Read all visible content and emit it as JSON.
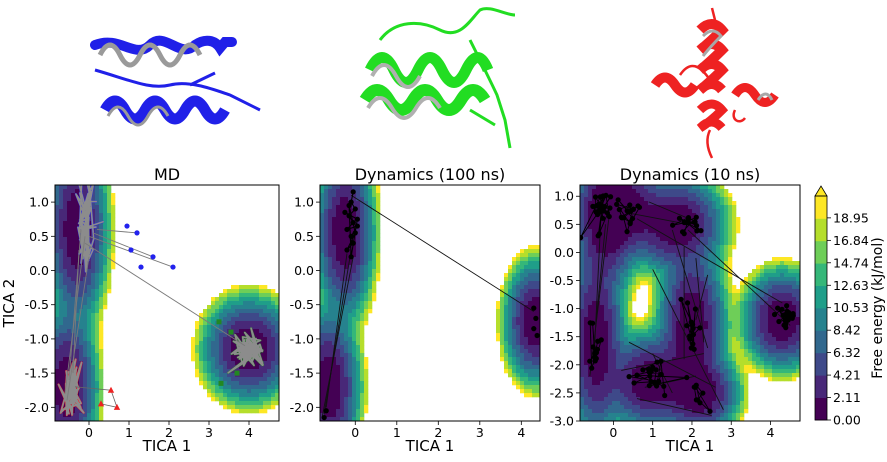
{
  "figure": {
    "colorbar": {
      "label": "Free energy (kJ/mol)",
      "ticks": [
        "0.00",
        "2.11",
        "4.21",
        "6.32",
        "8.42",
        "10.53",
        "12.63",
        "14.74",
        "16.84",
        "18.95"
      ],
      "range": [
        0,
        21.0
      ],
      "extend": "max",
      "colormap": [
        "#440154",
        "#482878",
        "#3e4989",
        "#31688e",
        "#26828e",
        "#1f9e89",
        "#35b779",
        "#6ece58",
        "#b5de2b",
        "#fde725"
      ]
    },
    "structures": [
      {
        "name": "protein-blue",
        "color": "#2020e8"
      },
      {
        "name": "protein-green",
        "color": "#22dd22"
      },
      {
        "name": "protein-red",
        "color": "#ee2222"
      }
    ]
  },
  "chart_data": [
    {
      "type": "contour+scatter",
      "title": "MD",
      "xlabel": "TICA 1",
      "ylabel": "TICA 2",
      "xlim": [
        -0.85,
        4.75
      ],
      "ylim": [
        -2.2,
        1.25
      ],
      "xticks": [
        "0",
        "1",
        "2",
        "3",
        "4"
      ],
      "yticks": [
        "1.0",
        "0.5",
        "0.0",
        "-0.5",
        "-1.0",
        "-1.5",
        "-2.0"
      ],
      "basins": [
        {
          "x": -0.3,
          "y": 0.6,
          "sx": 0.3,
          "sy": 0.55
        },
        {
          "x": -0.55,
          "y": -1.7,
          "sx": 0.3,
          "sy": 0.45
        },
        {
          "x": 4.0,
          "y": -1.15,
          "sx": 0.45,
          "sy": 0.3
        }
      ],
      "trajectories": [
        {
          "color": "#2222ee",
          "marker": "circle",
          "region": {
            "cx": -0.1,
            "cy": 0.6,
            "rx": 0.22,
            "ry": 0.55
          }
        },
        {
          "color": "#ee2222",
          "marker": "triangle",
          "region": {
            "cx": -0.45,
            "cy": -1.75,
            "rx": 0.25,
            "ry": 0.4
          }
        },
        {
          "color": "#228822",
          "marker": "square",
          "region": {
            "cx": 4.0,
            "cy": -1.15,
            "rx": 0.35,
            "ry": 0.18
          }
        }
      ],
      "outliers": [
        {
          "color": "#2222ee",
          "marker": "circle",
          "points": [
            [
              1.2,
              0.55
            ],
            [
              1.6,
              0.2
            ],
            [
              2.1,
              0.05
            ],
            [
              1.05,
              0.3
            ],
            [
              1.3,
              0.05
            ],
            [
              0.95,
              0.65
            ]
          ]
        },
        {
          "color": "#ee2222",
          "marker": "triangle",
          "points": [
            [
              0.55,
              -1.75
            ],
            [
              0.3,
              -1.95
            ],
            [
              0.7,
              -2.0
            ]
          ]
        },
        {
          "color": "#228822",
          "marker": "square",
          "points": [
            [
              3.25,
              -0.75
            ],
            [
              3.55,
              -0.9
            ],
            [
              3.3,
              -1.65
            ],
            [
              3.7,
              -1.5
            ]
          ]
        }
      ]
    },
    {
      "type": "contour+scatter",
      "title": "Dynamics (100 ns)",
      "xlabel": "TICA 1",
      "ylabel": "",
      "xlim": [
        -0.85,
        4.45
      ],
      "ylim": [
        -2.2,
        1.25
      ],
      "xticks": [
        "0",
        "1",
        "2",
        "3",
        "4"
      ],
      "yticks": [
        "1.0",
        "0.5",
        "0.0",
        "-0.5",
        "-1.0",
        "-1.5",
        "-2.0"
      ],
      "basins": [
        {
          "x": -0.25,
          "y": 0.55,
          "sx": 0.28,
          "sy": 0.5
        },
        {
          "x": -0.65,
          "y": -1.7,
          "sx": 0.3,
          "sy": 0.45
        },
        {
          "x": 4.35,
          "y": -0.75,
          "sx": 0.3,
          "sy": 0.35
        }
      ],
      "trajectory_points": [
        [
          -0.05,
          1.15
        ],
        [
          -0.1,
          1.0
        ],
        [
          0.0,
          0.9
        ],
        [
          -0.15,
          0.8
        ],
        [
          -0.05,
          0.7
        ],
        [
          -0.2,
          0.6
        ],
        [
          0.05,
          0.65
        ],
        [
          -0.1,
          0.5
        ],
        [
          -0.05,
          0.4
        ],
        [
          -0.2,
          0.3
        ],
        [
          0.0,
          0.55
        ],
        [
          -0.15,
          0.95
        ],
        [
          -0.1,
          0.2
        ],
        [
          0.05,
          0.75
        ],
        [
          -0.25,
          0.85
        ],
        [
          4.3,
          -0.55
        ],
        [
          4.35,
          -0.7
        ],
        [
          4.3,
          -0.85
        ],
        [
          4.38,
          -0.95
        ],
        [
          -0.7,
          -2.05
        ],
        [
          -0.75,
          -2.15
        ]
      ],
      "transitions": [
        [
          [
            -0.1,
            1.1
          ],
          [
            4.3,
            -0.6
          ]
        ],
        [
          [
            -0.1,
            0.3
          ],
          [
            -0.75,
            -2.1
          ]
        ],
        [
          [
            -0.2,
            0.25
          ],
          [
            -0.7,
            -2.0
          ]
        ],
        [
          [
            -0.05,
            0.2
          ],
          [
            -0.8,
            -2.15
          ]
        ]
      ]
    },
    {
      "type": "contour+scatter",
      "title": "Dynamics (10 ns)",
      "xlabel": "TICA 1",
      "ylabel": "",
      "xlim": [
        -0.85,
        4.75
      ],
      "ylim": [
        -3.0,
        1.2
      ],
      "xticks": [
        "0",
        "1",
        "2",
        "3",
        "4"
      ],
      "yticks": [
        "1.0",
        "0.5",
        "0.0",
        "-0.5",
        "-1.0",
        "-1.5",
        "-2.0",
        "-2.5",
        "-3.0"
      ],
      "basins": [
        {
          "x": -0.2,
          "y": 0.6,
          "sx": 0.35,
          "sy": 0.55
        },
        {
          "x": 0.3,
          "y": 0.75,
          "sx": 0.45,
          "sy": 0.35
        },
        {
          "x": 1.6,
          "y": 0.5,
          "sx": 0.5,
          "sy": 0.35
        },
        {
          "x": -0.45,
          "y": -1.6,
          "sx": 0.3,
          "sy": 0.7
        },
        {
          "x": 1.0,
          "y": -2.3,
          "sx": 0.55,
          "sy": 0.35
        },
        {
          "x": 2.0,
          "y": -1.3,
          "sx": 0.35,
          "sy": 0.6
        },
        {
          "x": 2.2,
          "y": -2.5,
          "sx": 0.4,
          "sy": 0.3
        },
        {
          "x": 4.3,
          "y": -1.2,
          "sx": 0.4,
          "sy": 0.35
        }
      ],
      "clusters": [
        {
          "cx": -0.3,
          "cy": 0.75,
          "rx": 0.25,
          "ry": 0.4,
          "n": 28
        },
        {
          "cx": 0.45,
          "cy": 0.7,
          "rx": 0.35,
          "ry": 0.25,
          "n": 18
        },
        {
          "cx": 1.9,
          "cy": 0.5,
          "rx": 0.4,
          "ry": 0.2,
          "n": 14
        },
        {
          "cx": -0.5,
          "cy": -1.7,
          "rx": 0.2,
          "ry": 0.45,
          "n": 14
        },
        {
          "cx": 1.0,
          "cy": -2.2,
          "rx": 0.55,
          "ry": 0.3,
          "n": 22
        },
        {
          "cx": 2.0,
          "cy": -1.4,
          "rx": 0.3,
          "ry": 0.5,
          "n": 14
        },
        {
          "cx": 2.2,
          "cy": -2.6,
          "rx": 0.3,
          "ry": 0.25,
          "n": 8
        },
        {
          "cx": 4.4,
          "cy": -1.15,
          "rx": 0.25,
          "ry": 0.2,
          "n": 24
        }
      ],
      "transitions": [
        [
          [
            -0.3,
            0.9
          ],
          [
            -0.5,
            -2.0
          ]
        ],
        [
          [
            -0.2,
            0.5
          ],
          [
            -0.45,
            -1.3
          ]
        ],
        [
          [
            -0.1,
            0.7
          ],
          [
            -0.6,
            -2.2
          ]
        ],
        [
          [
            0.4,
            0.7
          ],
          [
            1.9,
            0.5
          ]
        ],
        [
          [
            0.9,
            0.9
          ],
          [
            2.1,
            0.55
          ]
        ],
        [
          [
            1.0,
            -0.3
          ],
          [
            2.8,
            -2.8
          ]
        ],
        [
          [
            1.5,
            0.4
          ],
          [
            2.4,
            -1.7
          ]
        ],
        [
          [
            1.8,
            0.1
          ],
          [
            1.8,
            -1.9
          ]
        ],
        [
          [
            0.6,
            0.6
          ],
          [
            4.3,
            -0.9
          ]
        ],
        [
          [
            1.9,
            0.4
          ],
          [
            4.5,
            -1.3
          ]
        ],
        [
          [
            0.4,
            -1.6
          ],
          [
            2.6,
            -2.4
          ]
        ],
        [
          [
            0.2,
            -2.1
          ],
          [
            2.3,
            -1.8
          ]
        ],
        [
          [
            0.6,
            -2.6
          ],
          [
            2.5,
            -2.9
          ]
        ],
        [
          [
            1.0,
            -1.8
          ],
          [
            1.5,
            -2.5
          ]
        ],
        [
          [
            0.8,
            -2.4
          ],
          [
            2.1,
            -2.2
          ]
        ],
        [
          [
            2.1,
            -1.2
          ],
          [
            2.4,
            -0.4
          ]
        ],
        [
          [
            2.3,
            -1.6
          ],
          [
            2.1,
            -0.1
          ]
        ]
      ]
    }
  ]
}
